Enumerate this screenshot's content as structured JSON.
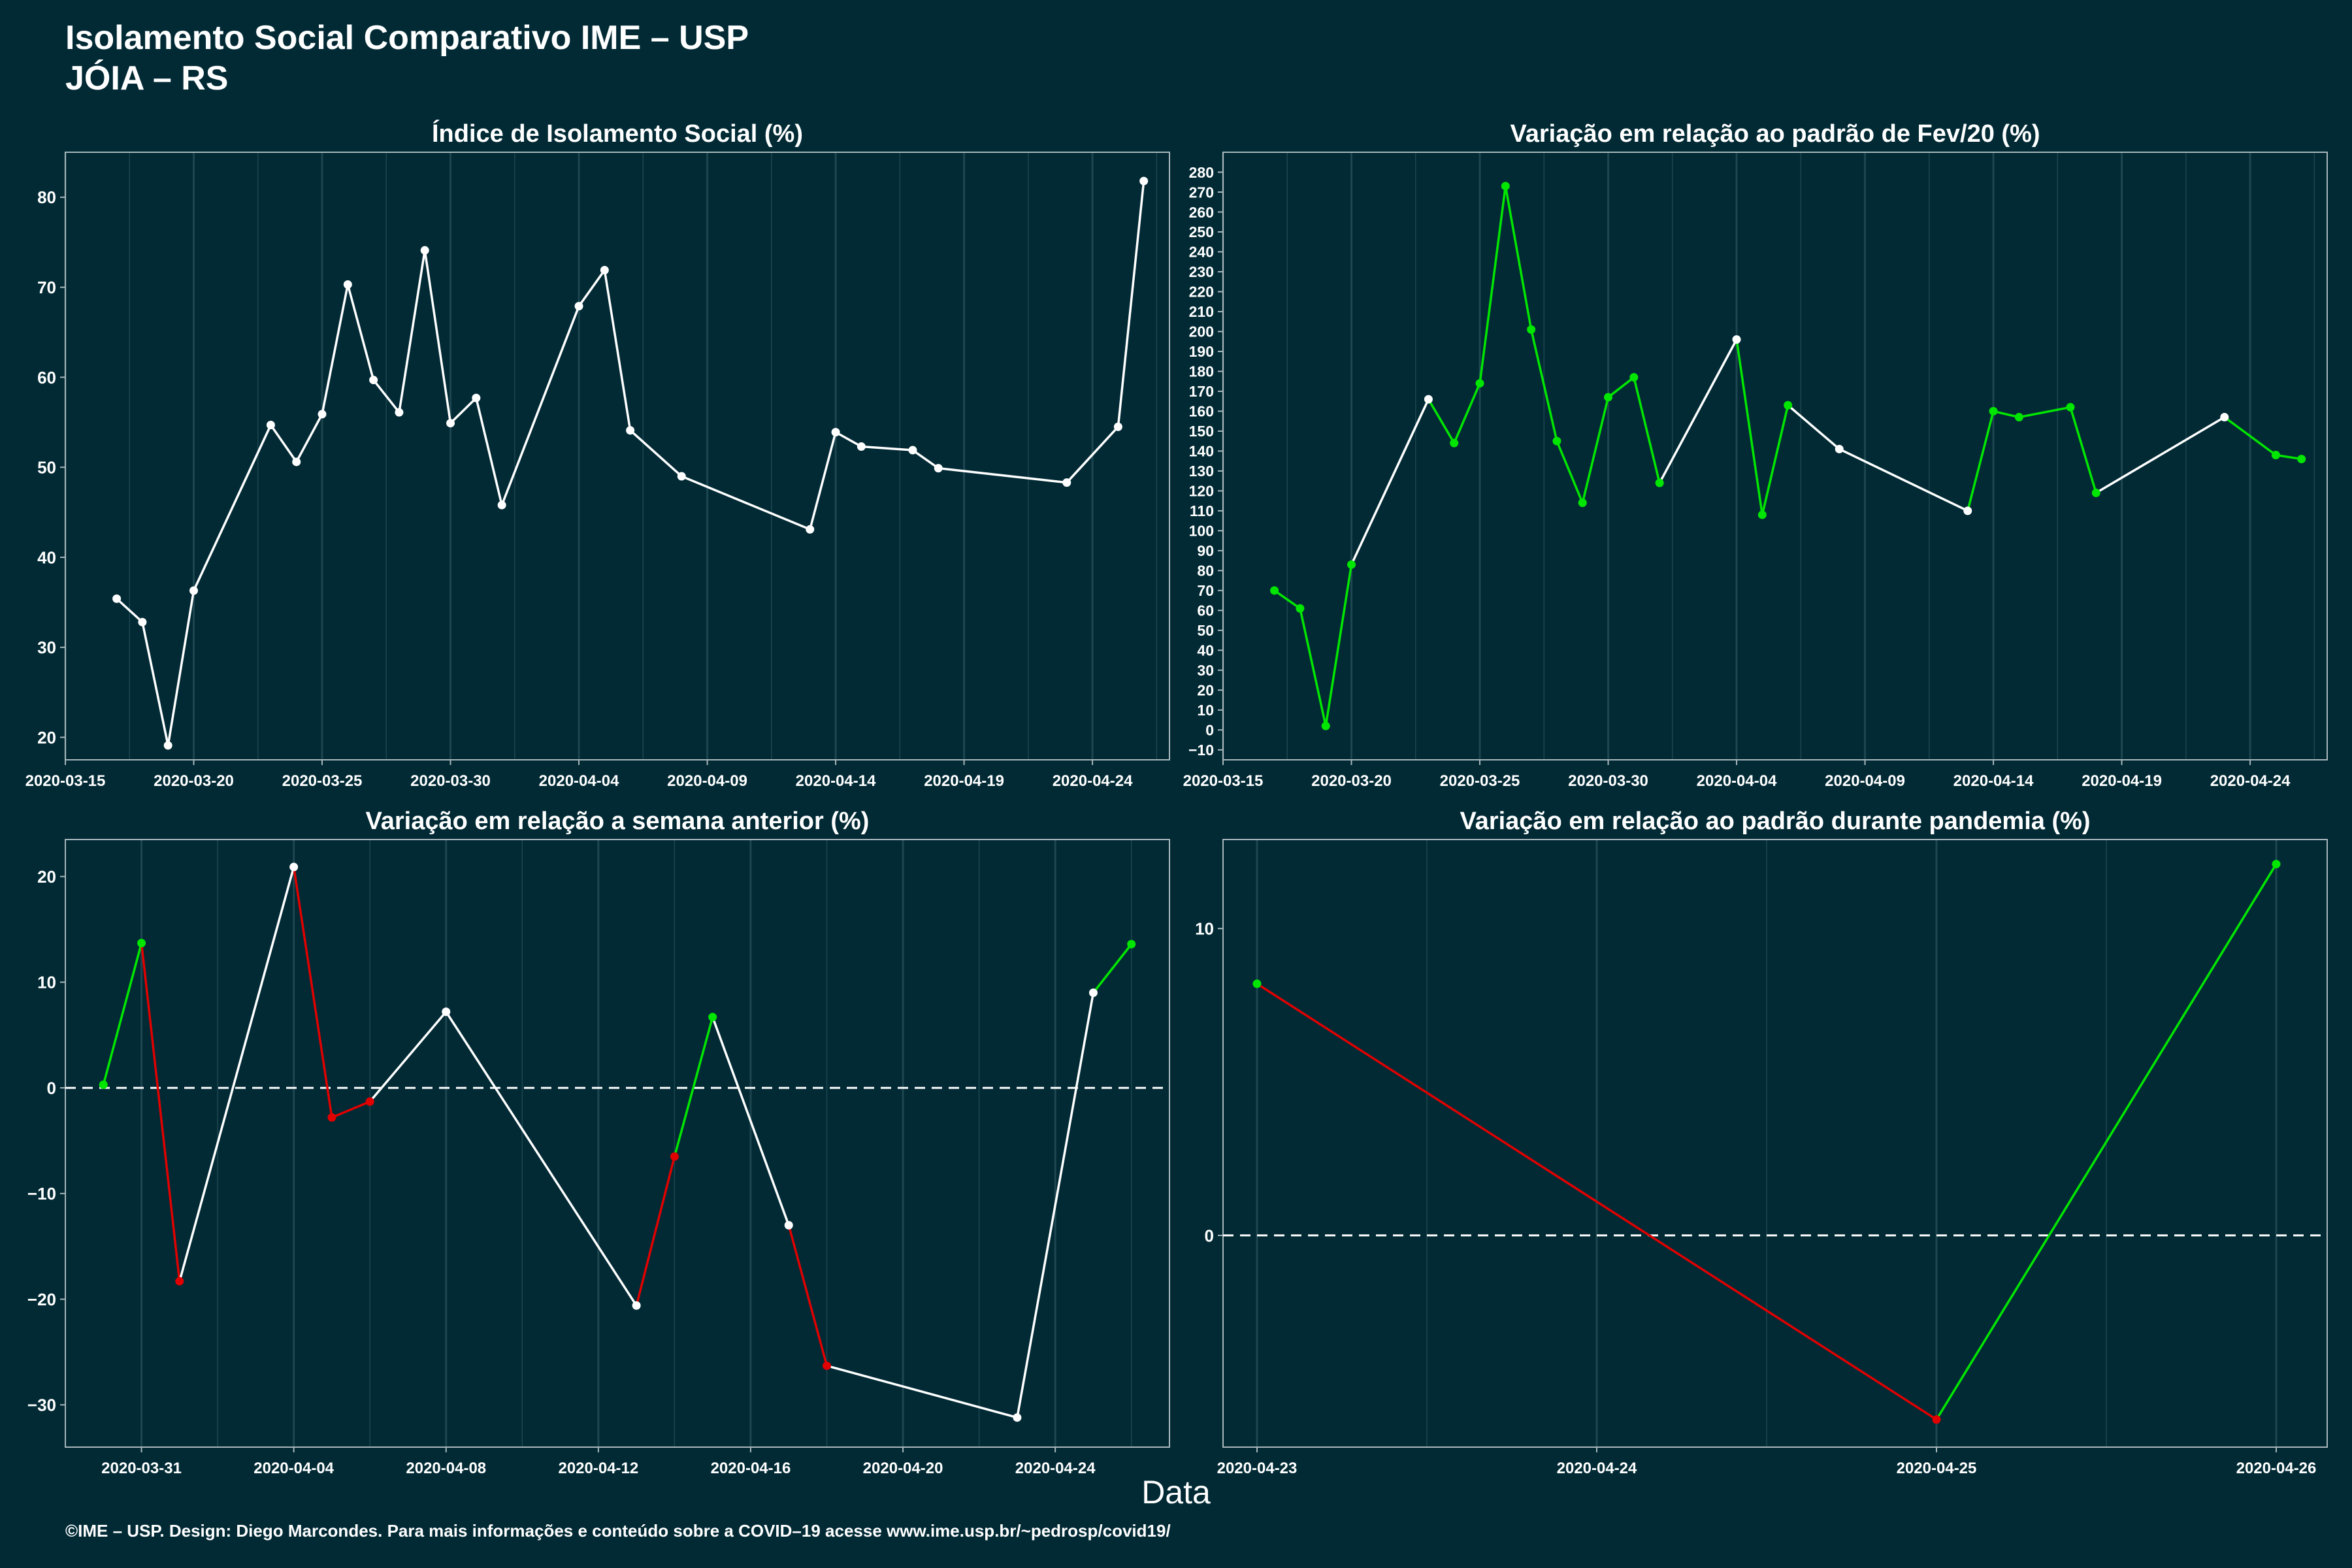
{
  "header": {
    "title": "Isolamento Social Comparativo IME – USP",
    "subtitle": "JÓIA – RS"
  },
  "xlabel": "Data",
  "footer": "©IME – USP. Design: Diego Marcondes. Para mais informações e conteúdo sobre a COVID–19 acesse www.ime.usp.br/~pedrosp/covid19/",
  "colors": {
    "background": "#012a35",
    "grid": "#1e4650",
    "line_white": "#ffffff",
    "up_green": "#00e600",
    "down_red": "#e00000",
    "axis": "#a9b7bb"
  },
  "chart_data": [
    {
      "type": "line",
      "title": "Índice de Isolamento Social (%)",
      "xlim": [
        "2020-03-15",
        "2020-04-27"
      ],
      "ylim": [
        17.5,
        85
      ],
      "x_ticks": [
        "2020-03-15",
        "2020-03-20",
        "2020-03-25",
        "2020-03-30",
        "2020-04-04",
        "2020-04-09",
        "2020-04-14",
        "2020-04-19",
        "2020-04-24"
      ],
      "y_ticks": [
        20,
        30,
        40,
        50,
        60,
        70,
        80
      ],
      "zero_line": false,
      "points": [
        [
          "2020-03-17",
          35.4,
          "white"
        ],
        [
          "2020-03-18",
          32.8,
          "white"
        ],
        [
          "2020-03-19",
          19.1,
          "white"
        ],
        [
          "2020-03-20",
          36.3,
          "white"
        ],
        [
          "2020-03-23",
          54.7,
          "white"
        ],
        [
          "2020-03-24",
          50.6,
          "white"
        ],
        [
          "2020-03-25",
          55.9,
          "white"
        ],
        [
          "2020-03-26",
          70.3,
          "white"
        ],
        [
          "2020-03-27",
          59.7,
          "white"
        ],
        [
          "2020-03-28",
          56.1,
          "white"
        ],
        [
          "2020-03-29",
          74.1,
          "white"
        ],
        [
          "2020-03-30",
          54.9,
          "white"
        ],
        [
          "2020-03-31",
          57.7,
          "white"
        ],
        [
          "2020-04-01",
          45.8,
          "white"
        ],
        [
          "2020-04-04",
          67.9,
          "white"
        ],
        [
          "2020-04-05",
          71.9,
          "white"
        ],
        [
          "2020-04-06",
          54.1,
          "white"
        ],
        [
          "2020-04-08",
          49.0,
          "white"
        ],
        [
          "2020-04-13",
          43.1,
          "white"
        ],
        [
          "2020-04-14",
          53.9,
          "white"
        ],
        [
          "2020-04-15",
          52.3,
          "white"
        ],
        [
          "2020-04-17",
          51.9,
          "white"
        ],
        [
          "2020-04-18",
          49.9,
          "white"
        ],
        [
          "2020-04-23",
          48.3,
          "white"
        ],
        [
          "2020-04-25",
          54.5,
          "white"
        ],
        [
          "2020-04-26",
          81.8,
          "white"
        ]
      ]
    },
    {
      "type": "line",
      "title": "Variação em relação ao padrão de Fev/20 (%)",
      "xlim": [
        "2020-03-15",
        "2020-04-27"
      ],
      "ylim": [
        -15,
        290
      ],
      "x_ticks": [
        "2020-03-15",
        "2020-03-20",
        "2020-03-25",
        "2020-03-30",
        "2020-04-04",
        "2020-04-09",
        "2020-04-14",
        "2020-04-19",
        "2020-04-24"
      ],
      "y_ticks": [
        -10,
        0,
        10,
        20,
        30,
        40,
        50,
        60,
        70,
        80,
        90,
        100,
        110,
        120,
        130,
        140,
        150,
        160,
        170,
        180,
        190,
        200,
        210,
        220,
        230,
        240,
        250,
        260,
        270,
        280
      ],
      "zero_line": false,
      "points": [
        [
          "2020-03-17",
          70,
          "green"
        ],
        [
          "2020-03-18",
          61,
          "green"
        ],
        [
          "2020-03-19",
          2,
          "green"
        ],
        [
          "2020-03-20",
          83,
          "green"
        ],
        [
          "2020-03-23",
          166,
          "white"
        ],
        [
          "2020-03-24",
          144,
          "green"
        ],
        [
          "2020-03-25",
          174,
          "green"
        ],
        [
          "2020-03-26",
          273,
          "green"
        ],
        [
          "2020-03-27",
          201,
          "green"
        ],
        [
          "2020-03-28",
          145,
          "green"
        ],
        [
          "2020-03-29",
          114,
          "green"
        ],
        [
          "2020-03-30",
          167,
          "green"
        ],
        [
          "2020-03-31",
          177,
          "green"
        ],
        [
          "2020-04-01",
          124,
          "green"
        ],
        [
          "2020-04-04",
          196,
          "white"
        ],
        [
          "2020-04-05",
          108,
          "green"
        ],
        [
          "2020-04-06",
          163,
          "green"
        ],
        [
          "2020-04-08",
          141,
          "white"
        ],
        [
          "2020-04-13",
          110,
          "white"
        ],
        [
          "2020-04-14",
          160,
          "green"
        ],
        [
          "2020-04-15",
          157,
          "green"
        ],
        [
          "2020-04-17",
          162,
          "green"
        ],
        [
          "2020-04-18",
          119,
          "green"
        ],
        [
          "2020-04-23",
          157,
          "white"
        ],
        [
          "2020-04-25",
          138,
          "green"
        ],
        [
          "2020-04-26",
          136,
          "green"
        ]
      ]
    },
    {
      "type": "line",
      "title": "Variação em relação a semana anterior (%)",
      "xlim": [
        "2020-03-29",
        "2020-04-27"
      ],
      "ylim": [
        -34,
        23.5
      ],
      "x_ticks": [
        "2020-03-31",
        "2020-04-04",
        "2020-04-08",
        "2020-04-12",
        "2020-04-16",
        "2020-04-20",
        "2020-04-24"
      ],
      "y_ticks": [
        -30,
        -20,
        -10,
        0,
        10,
        20
      ],
      "zero_line": true,
      "points": [
        [
          "2020-03-30",
          0.3,
          "green"
        ],
        [
          "2020-03-31",
          13.7,
          "green"
        ],
        [
          "2020-04-01",
          -18.3,
          "red"
        ],
        [
          "2020-04-04",
          20.9,
          "white"
        ],
        [
          "2020-04-05",
          -2.8,
          "red"
        ],
        [
          "2020-04-06",
          -1.3,
          "red"
        ],
        [
          "2020-04-08",
          7.2,
          "white"
        ],
        [
          "2020-04-13",
          -20.6,
          "white"
        ],
        [
          "2020-04-14",
          -6.5,
          "red"
        ],
        [
          "2020-04-15",
          6.7,
          "green"
        ],
        [
          "2020-04-17",
          -13.0,
          "white"
        ],
        [
          "2020-04-18",
          -26.3,
          "red"
        ],
        [
          "2020-04-23",
          -31.2,
          "white"
        ],
        [
          "2020-04-25",
          9.0,
          "white"
        ],
        [
          "2020-04-26",
          13.6,
          "green"
        ]
      ]
    },
    {
      "type": "line",
      "title": "Variação em relação ao padrão durante pandemia (%)",
      "xlim": [
        "2020-04-22.9",
        "2020-04-26.15"
      ],
      "ylim": [
        -6.9,
        12.9
      ],
      "x_ticks": [
        "2020-04-23",
        "2020-04-24",
        "2020-04-25",
        "2020-04-26"
      ],
      "y_ticks": [
        0,
        10
      ],
      "zero_line": true,
      "points": [
        [
          "2020-04-23",
          8.2,
          "green"
        ],
        [
          "2020-04-25",
          -6.0,
          "red"
        ],
        [
          "2020-04-26",
          12.1,
          "green"
        ]
      ]
    }
  ]
}
